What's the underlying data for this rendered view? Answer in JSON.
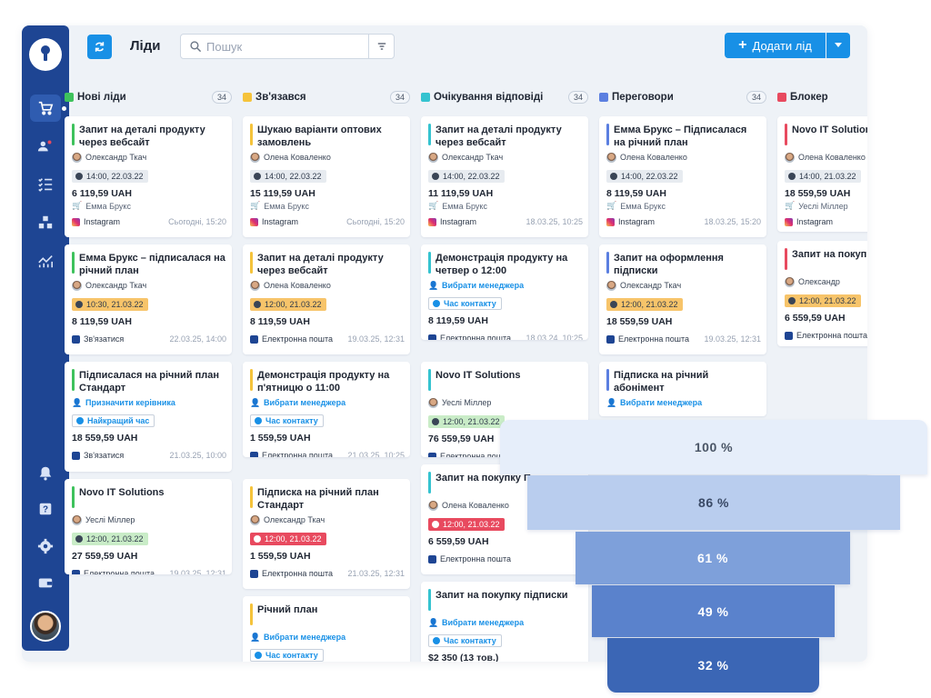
{
  "header": {
    "title": "Ліди",
    "search_placeholder": "Пошук",
    "add_label": "Додати лід"
  },
  "columns": [
    {
      "name": "Нові ліди",
      "count": "34",
      "color": "#3ec25c",
      "cards": [
        {
          "title": "Запит на деталі продукту через вебсайт",
          "bar": "#3ec25c",
          "person": "Олександр Ткач",
          "time": "14:00, 22.03.22",
          "time_style": "grey",
          "amount": "6 119,59 UAH",
          "manager": "Емма Брукс",
          "source": "Instagram",
          "date": "Сьогодні, 15:20"
        },
        {
          "title": "Емма Брукс – підписалася на річний план",
          "bar": "#3ec25c",
          "person": "Олександр Ткач",
          "time": "10:30, 21.03.22",
          "time_style": "orange",
          "amount": "8 119,59 UAH",
          "source": "Зв'язатися",
          "date": "22.03.25, 14:00"
        },
        {
          "title": "Підписалася на річний план Стандарт",
          "bar": "#3ec25c",
          "link": "Призначити керівника",
          "chip_link": "Найкращий час",
          "amount": "18 559,59 UAH",
          "source": "Зв'язатися",
          "date": "21.03.25, 10:00"
        },
        {
          "title": "Novo IT Solutions",
          "bar": "#3ec25c",
          "person": "Уеслі Міллер",
          "time": "12:00, 21.03.22",
          "time_style": "green",
          "amount": "27 559,59 UAH",
          "source": "Електронна пошта",
          "date": "19.03.25, 12:31"
        }
      ]
    },
    {
      "name": "Зв'язався",
      "count": "34",
      "color": "#f5c33b",
      "cards": [
        {
          "title": "Шукаю варіанти оптових замовлень",
          "bar": "#f5c33b",
          "person": "Олена Коваленко",
          "time": "14:00, 22.03.22",
          "time_style": "grey",
          "amount": "15 119,59 UAH",
          "manager": "Емма Брукс",
          "source": "Instagram",
          "date": "Сьогодні, 15:20"
        },
        {
          "title": "Запит на деталі продукту через вебсайт",
          "bar": "#f5c33b",
          "person": "Олена Коваленко",
          "time": "12:00, 21.03.22",
          "time_style": "orange",
          "amount": "8 119,59 UAH",
          "source": "Електронна пошта",
          "date": "19.03.25, 12:31"
        },
        {
          "title": "Демонстрація продукту на п'ятницю о 11:00",
          "bar": "#f5c33b",
          "link": "Вибрати менеджера",
          "chip_link": "Час контакту",
          "amount": "1 559,59 UAH",
          "source": "Електронна пошта",
          "date": "21.03.25, 10:25"
        },
        {
          "title": "Підписка на річний план Стандарт",
          "bar": "#f5c33b",
          "person": "Олександр Ткач",
          "time": "12:00, 21.03.22",
          "time_style": "red",
          "amount": "1 559,59 UAH",
          "source": "Електронна пошта",
          "date": "21.03.25, 12:31"
        },
        {
          "title": "Річний план",
          "bar": "#f5c33b",
          "link": "Вибрати менеджера",
          "chip_link": "Час контакту"
        }
      ]
    },
    {
      "name": "Очікування відповіді",
      "count": "34",
      "color": "#35c3d0",
      "cards": [
        {
          "title": "Запит на деталі продукту через вебсайт",
          "bar": "#35c3d0",
          "person": "Олександр Ткач",
          "time": "14:00, 22.03.22",
          "time_style": "grey",
          "amount": "11 119,59 UAH",
          "manager": "Емма Брукс",
          "source": "Instagram",
          "date": "18.03.25, 10:25"
        },
        {
          "title": "Демонстрація продукту на четвер о 12:00",
          "bar": "#35c3d0",
          "link": "Вибрати менеджера",
          "chip_link": "Час контакту",
          "amount": "8 119,59 UAH",
          "source": "Електронна пошта",
          "date": "18.03.24, 10:25"
        },
        {
          "title": "Novo IT Solutions",
          "bar": "#35c3d0",
          "person": "Уеслі Міллер",
          "time": "12:00, 21.03.22",
          "time_style": "green",
          "amount": "76 559,59 UAH",
          "source": "Електронна пошта",
          "date": ""
        },
        {
          "title": "Запит на покупку Преміум",
          "bar": "#35c3d0",
          "person": "Олена Коваленко",
          "time": "12:00, 21.03.22",
          "time_style": "red",
          "amount": "6 559,59 UAH",
          "source": "Електронна пошта",
          "date": ""
        },
        {
          "title": "Запит на покупку підписки",
          "bar": "#35c3d0",
          "link": "Вибрати менеджера",
          "chip_link": "Час контакту",
          "amount": "$2 350 (13 тов.)"
        }
      ]
    },
    {
      "name": "Переговори",
      "count": "34",
      "color": "#5b7fe0",
      "cards": [
        {
          "title": "Емма Брукс – Підписалася на річний план",
          "bar": "#5b7fe0",
          "person": "Олена Коваленко",
          "time": "14:00, 22.03.22",
          "time_style": "grey",
          "amount": "8 119,59 UAH",
          "manager": "Емма Брукс",
          "source": "Instagram",
          "date": "18.03.25, 15:20"
        },
        {
          "title": "Запит на оформлення підписки",
          "bar": "#5b7fe0",
          "person": "Олександр Ткач",
          "time": "12:00, 21.03.22",
          "time_style": "orange",
          "amount": "18 559,59 UAH",
          "source": "Електронна пошта",
          "date": "19.03.25, 12:31"
        },
        {
          "title": "Підписка на річний абонімент",
          "bar": "#5b7fe0",
          "link": "Вибрати менеджера"
        }
      ]
    },
    {
      "name": "Блокер",
      "count": "",
      "color": "#e84a5f",
      "cards": [
        {
          "title": "Novo IT Solutions",
          "bar": "#e84a5f",
          "person": "Олена Коваленко",
          "time": "14:00, 21.03.22",
          "time_style": "grey",
          "amount": "18 559,59 UAH",
          "manager": "Уеслі Міллер",
          "source": "Instagram",
          "date": ""
        },
        {
          "title": "Запит на покупку Преміум",
          "bar": "#e84a5f",
          "person": "Олександр",
          "time": "12:00, 21.03.22",
          "time_style": "orange",
          "amount": "6 559,59 UAH",
          "source": "Електронна пошта",
          "date": ""
        }
      ]
    }
  ],
  "funnel": [
    {
      "label": "100 %",
      "color": "#e6eefa",
      "text": "#4a5566"
    },
    {
      "label": "86 %",
      "color": "#b9cdee",
      "text": "#3a4a66"
    },
    {
      "label": "61 %",
      "color": "#7ea0da",
      "text": "#ffffff"
    },
    {
      "label": "49 %",
      "color": "#5a82cc",
      "text": "#ffffff"
    },
    {
      "label": "32 %",
      "color": "#3b66b5",
      "text": "#ffffff"
    }
  ],
  "sidebar_icons": [
    "cart-icon",
    "users-icon",
    "tasks-icon",
    "boxes-icon",
    "analytics-icon",
    "bell-icon",
    "help-icon",
    "settings-icon",
    "wallet-icon"
  ]
}
